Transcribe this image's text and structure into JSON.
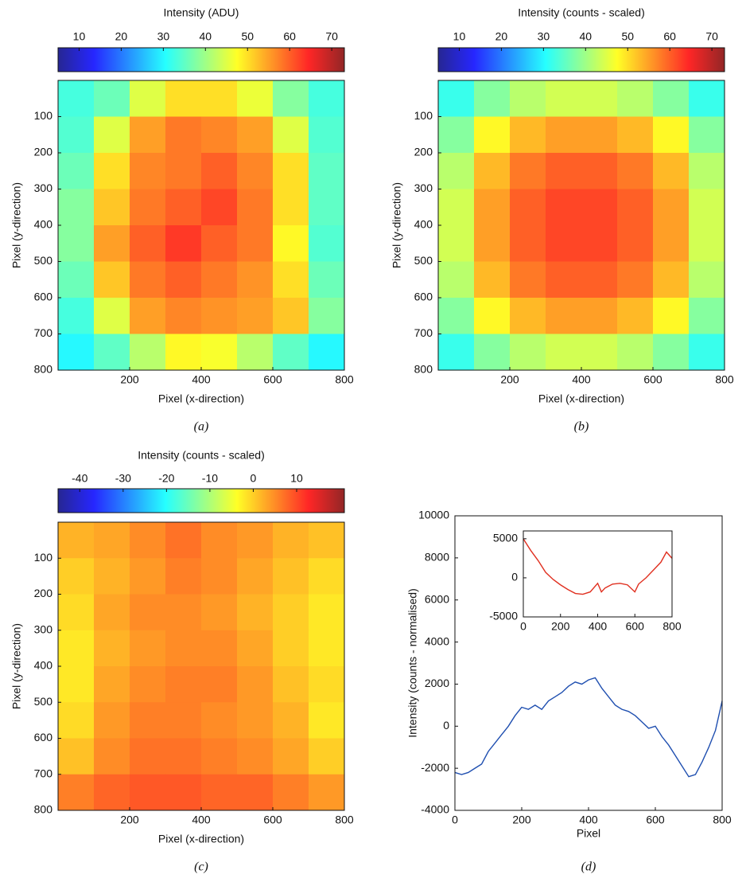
{
  "chart_data": [
    {
      "type": "heatmap",
      "caption": "(a)",
      "colorbar_label": "Intensity (ADU)",
      "colormap": "jet",
      "clim": [
        5,
        73
      ],
      "cticks": [
        10,
        20,
        30,
        40,
        50,
        60,
        70
      ],
      "xlabel": "Pixel (x-direction)",
      "ylabel": "Pixel (y-direction)",
      "xlim": [
        0,
        800
      ],
      "xticks": [
        200,
        400,
        600,
        800
      ],
      "ylim": [
        800,
        0
      ],
      "yticks": [
        100,
        200,
        300,
        400,
        500,
        600,
        700,
        800
      ],
      "z": [
        [
          33,
          36,
          45,
          50,
          50,
          46,
          38,
          33
        ],
        [
          34,
          45,
          55,
          58,
          57,
          55,
          45,
          34
        ],
        [
          36,
          50,
          57,
          58,
          60,
          57,
          50,
          35
        ],
        [
          38,
          52,
          58,
          60,
          62,
          58,
          50,
          35
        ],
        [
          38,
          55,
          60,
          63,
          60,
          58,
          48,
          34
        ],
        [
          36,
          52,
          58,
          60,
          58,
          56,
          50,
          36
        ],
        [
          33,
          45,
          55,
          57,
          56,
          55,
          52,
          38
        ],
        [
          30,
          35,
          42,
          48,
          47,
          42,
          35,
          30
        ]
      ]
    },
    {
      "type": "heatmap",
      "caption": "(b)",
      "colorbar_label": "Intensity (counts - scaled)",
      "colormap": "jet",
      "clim": [
        5,
        73
      ],
      "cticks": [
        10,
        20,
        30,
        40,
        50,
        60,
        70
      ],
      "xlabel": "Pixel (x-direction)",
      "ylabel": "Pixel (y-direction)",
      "xlim": [
        0,
        800
      ],
      "xticks": [
        200,
        400,
        600,
        800
      ],
      "ylim": [
        800,
        0
      ],
      "yticks": [
        100,
        200,
        300,
        400,
        500,
        600,
        700,
        800
      ],
      "z": [
        [
          32,
          38,
          42,
          44,
          44,
          42,
          38,
          32
        ],
        [
          38,
          48,
          53,
          55,
          55,
          53,
          48,
          38
        ],
        [
          42,
          53,
          58,
          60,
          60,
          58,
          53,
          42
        ],
        [
          44,
          55,
          60,
          62,
          62,
          60,
          55,
          44
        ],
        [
          44,
          55,
          60,
          62,
          62,
          60,
          55,
          44
        ],
        [
          42,
          53,
          58,
          60,
          60,
          58,
          53,
          42
        ],
        [
          38,
          48,
          53,
          55,
          55,
          53,
          48,
          38
        ],
        [
          32,
          38,
          42,
          44,
          44,
          42,
          38,
          32
        ]
      ]
    },
    {
      "type": "heatmap",
      "caption": "(c)",
      "colorbar_label": "Intensity (counts - scaled)",
      "colormap": "jet",
      "clim": [
        -45,
        21
      ],
      "cticks": [
        -40,
        -30,
        -20,
        -10,
        0,
        10
      ],
      "xlabel": "Pixel (x-direction)",
      "ylabel": "Pixel (y-direction)",
      "xlim": [
        0,
        800
      ],
      "xticks": [
        200,
        400,
        600,
        800
      ],
      "ylim": [
        800,
        0
      ],
      "yticks": [
        100,
        200,
        300,
        400,
        500,
        600,
        700,
        800
      ],
      "z": [
        [
          2,
          3,
          5,
          7,
          5,
          4,
          2,
          1
        ],
        [
          0,
          2,
          4,
          6,
          5,
          3,
          1,
          -1
        ],
        [
          -1,
          3,
          5,
          5,
          4,
          2,
          0,
          -2
        ],
        [
          -2,
          2,
          4,
          5,
          5,
          3,
          0,
          -2
        ],
        [
          -2,
          3,
          5,
          6,
          6,
          4,
          1,
          -1
        ],
        [
          -1,
          4,
          6,
          6,
          5,
          4,
          2,
          -2
        ],
        [
          1,
          5,
          7,
          7,
          6,
          5,
          3,
          0
        ],
        [
          6,
          8,
          9,
          9,
          8,
          8,
          6,
          4
        ]
      ]
    },
    {
      "type": "line",
      "caption": "(d)",
      "xlabel": "Pixel",
      "ylabel": "Intensity (counts - normalised)",
      "color": "#1f4fb0",
      "xlim": [
        0,
        800
      ],
      "xticks": [
        0,
        200,
        400,
        600,
        800
      ],
      "ylim": [
        -4000,
        10000
      ],
      "yticks": [
        -4000,
        -2000,
        0,
        2000,
        4000,
        6000,
        8000,
        10000
      ],
      "x": [
        0,
        20,
        40,
        60,
        80,
        100,
        120,
        140,
        160,
        180,
        200,
        220,
        240,
        260,
        280,
        300,
        320,
        340,
        360,
        380,
        400,
        420,
        440,
        460,
        480,
        500,
        520,
        540,
        560,
        580,
        600,
        620,
        640,
        660,
        680,
        700,
        720,
        740,
        760,
        780,
        800
      ],
      "values": [
        -2200,
        -2300,
        -2200,
        -2000,
        -1800,
        -1200,
        -800,
        -400,
        0,
        500,
        900,
        800,
        1000,
        800,
        1200,
        1400,
        1600,
        1900,
        2100,
        2000,
        2200,
        2300,
        1800,
        1400,
        1000,
        800,
        700,
        500,
        200,
        -100,
        0,
        -500,
        -900,
        -1400,
        -1900,
        -2400,
        -2300,
        -1700,
        -1000,
        -200,
        1200
      ]
    },
    {
      "type": "line",
      "color": "#e03020",
      "xlim": [
        0,
        800
      ],
      "xticks": [
        0,
        200,
        400,
        600,
        800
      ],
      "ylim": [
        -5000,
        6000
      ],
      "yticks": [
        -5000,
        0,
        5000
      ],
      "x": [
        0,
        40,
        80,
        120,
        160,
        200,
        240,
        280,
        320,
        360,
        400,
        420,
        440,
        480,
        520,
        560,
        600,
        620,
        660,
        700,
        740,
        770,
        800
      ],
      "values": [
        5000,
        3500,
        2200,
        700,
        -200,
        -900,
        -1500,
        -2000,
        -2100,
        -1800,
        -700,
        -1800,
        -1300,
        -800,
        -700,
        -900,
        -1800,
        -800,
        0,
        1000,
        2000,
        3300,
        2500
      ]
    }
  ]
}
